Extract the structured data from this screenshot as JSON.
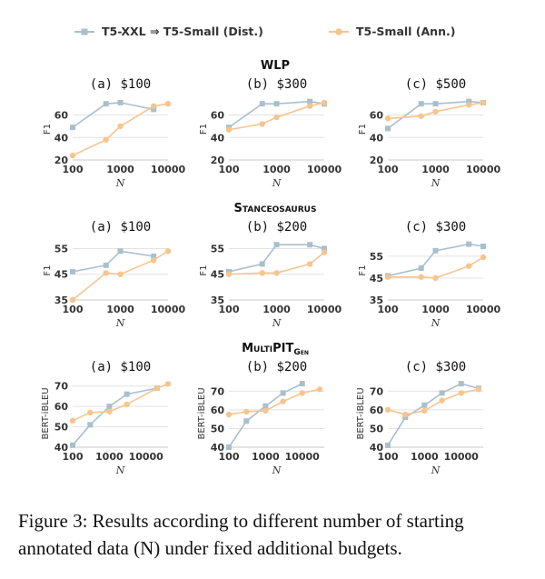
{
  "legend": {
    "distill": {
      "label": "T5-XXL ⇒ T5-Small (Dist.)",
      "color": "#a9bfcc",
      "marker": "square"
    },
    "annot": {
      "label": "T5-Small (Ann.)",
      "color": "#f6c58e",
      "marker": "circle"
    }
  },
  "caption": "Figure 3: Results according to different number of starting annotated data (N) under fixed additional budgets.",
  "chart_data": [
    {
      "type": "line",
      "group": "WLP",
      "group_title": "WLP",
      "title": "(a) $100",
      "xlabel": "N",
      "ylabel": "F1",
      "xscale": "log",
      "xlim": [
        100,
        10000
      ],
      "ylim": [
        20,
        75
      ],
      "xticks": [
        100,
        1000,
        10000
      ],
      "xtick_labels": [
        "100",
        "1000",
        "10000"
      ],
      "yticks": [
        20,
        40,
        60
      ],
      "ytick_labels": [
        "20",
        "40",
        "60"
      ],
      "series": [
        {
          "name": "T5-XXL ⇒ T5-Small (Dist.)",
          "x": [
            100,
            500,
            1000,
            5000
          ],
          "y": [
            49,
            70,
            71,
            65
          ]
        },
        {
          "name": "T5-Small (Ann.)",
          "x": [
            100,
            500,
            1000,
            5000,
            10000
          ],
          "y": [
            24,
            38,
            50,
            68,
            70
          ]
        }
      ]
    },
    {
      "type": "line",
      "group": "WLP",
      "title": "(b) $300",
      "xlabel": "N",
      "ylabel": "F1",
      "xscale": "log",
      "xlim": [
        100,
        10000
      ],
      "ylim": [
        20,
        75
      ],
      "xticks": [
        100,
        1000,
        10000
      ],
      "xtick_labels": [
        "100",
        "1000",
        "10000"
      ],
      "yticks": [
        20,
        40,
        60
      ],
      "ytick_labels": [
        "20",
        "40",
        "60"
      ],
      "series": [
        {
          "name": "T5-XXL ⇒ T5-Small (Dist.)",
          "x": [
            100,
            500,
            1000,
            5000,
            10000
          ],
          "y": [
            49,
            70,
            70,
            72,
            70
          ]
        },
        {
          "name": "T5-Small (Ann.)",
          "x": [
            100,
            500,
            1000,
            5000,
            10000
          ],
          "y": [
            47,
            52,
            58,
            68,
            71
          ]
        }
      ]
    },
    {
      "type": "line",
      "group": "WLP",
      "title": "(c) $500",
      "xlabel": "N",
      "ylabel": "F1",
      "xscale": "log",
      "xlim": [
        100,
        10000
      ],
      "ylim": [
        20,
        75
      ],
      "xticks": [
        100,
        1000,
        10000
      ],
      "xtick_labels": [
        "100",
        "1000",
        "10000"
      ],
      "yticks": [
        20,
        40,
        60
      ],
      "ytick_labels": [
        "20",
        "40",
        "60"
      ],
      "series": [
        {
          "name": "T5-XXL ⇒ T5-Small (Dist.)",
          "x": [
            100,
            500,
            1000,
            5000,
            10000
          ],
          "y": [
            48,
            70,
            70,
            72,
            71
          ]
        },
        {
          "name": "T5-Small (Ann.)",
          "x": [
            100,
            500,
            1000,
            5000,
            10000
          ],
          "y": [
            57,
            59,
            63,
            69,
            71
          ]
        }
      ]
    },
    {
      "type": "line",
      "group": "STANCEOSAURUS",
      "group_title": "Stanceosaurus",
      "title": "(a) $100",
      "xlabel": "N",
      "ylabel": "F1",
      "xscale": "log",
      "xlim": [
        100,
        10000
      ],
      "ylim": [
        35,
        58
      ],
      "xticks": [
        100,
        1000,
        10000
      ],
      "xtick_labels": [
        "100",
        "1000",
        "10000"
      ],
      "yticks": [
        35,
        45,
        55
      ],
      "ytick_labels": [
        "35",
        "45",
        "55"
      ],
      "series": [
        {
          "name": "T5-XXL ⇒ T5-Small (Dist.)",
          "x": [
            100,
            500,
            1000,
            5000
          ],
          "y": [
            46,
            48.5,
            54,
            52
          ]
        },
        {
          "name": "T5-Small (Ann.)",
          "x": [
            100,
            500,
            1000,
            5000,
            10000
          ],
          "y": [
            35,
            45.5,
            45,
            50.5,
            54
          ]
        }
      ]
    },
    {
      "type": "line",
      "group": "STANCEOSAURUS",
      "title": "(b) $200",
      "xlabel": "N",
      "ylabel": "F1",
      "xscale": "log",
      "xlim": [
        100,
        10000
      ],
      "ylim": [
        35,
        58
      ],
      "xticks": [
        100,
        1000,
        10000
      ],
      "xtick_labels": [
        "100",
        "1000",
        "10000"
      ],
      "yticks": [
        35,
        45,
        55
      ],
      "ytick_labels": [
        "35",
        "45",
        "55"
      ],
      "series": [
        {
          "name": "T5-XXL ⇒ T5-Small (Dist.)",
          "x": [
            100,
            500,
            1000,
            5000,
            10000
          ],
          "y": [
            46,
            49,
            56.5,
            56.5,
            55
          ]
        },
        {
          "name": "T5-Small (Ann.)",
          "x": [
            100,
            500,
            1000,
            5000,
            10000
          ],
          "y": [
            45,
            45.5,
            45.5,
            49,
            53.5
          ]
        }
      ]
    },
    {
      "type": "line",
      "group": "STANCEOSAURUS",
      "title": "(c) $300",
      "xlabel": "N",
      "ylabel": "F1",
      "xscale": "log",
      "xlim": [
        100,
        10000
      ],
      "ylim": [
        35,
        62
      ],
      "xticks": [
        100,
        1000,
        10000
      ],
      "xtick_labels": [
        "100",
        "1000",
        "10000"
      ],
      "yticks": [
        35,
        45,
        55
      ],
      "ytick_labels": [
        "35",
        "45",
        "55"
      ],
      "series": [
        {
          "name": "T5-XXL ⇒ T5-Small (Dist.)",
          "x": [
            100,
            500,
            1000,
            5000,
            10000
          ],
          "y": [
            46,
            49.5,
            57.5,
            60.5,
            59.5
          ]
        },
        {
          "name": "T5-Small (Ann.)",
          "x": [
            100,
            500,
            1000,
            5000,
            10000
          ],
          "y": [
            45.5,
            45.5,
            45,
            50.5,
            54.5
          ]
        }
      ]
    },
    {
      "type": "line",
      "group": "MULTIPIT_GEN",
      "group_title": "MultiPIT",
      "group_title_sub": "Gen",
      "title": "(a) $100",
      "xlabel": "N",
      "ylabel": "BERT-iBLEU",
      "xscale": "log",
      "xlim": [
        100,
        40000
      ],
      "ylim": [
        40,
        73
      ],
      "xticks": [
        100,
        1000,
        10000
      ],
      "xtick_labels": [
        "100",
        "1000",
        "10000"
      ],
      "yticks": [
        40,
        50,
        60,
        70
      ],
      "ytick_labels": [
        "40",
        "50",
        "60",
        "70"
      ],
      "series": [
        {
          "name": "T5-XXL ⇒ T5-Small (Dist.)",
          "x": [
            100,
            300,
            1000,
            3000,
            20000
          ],
          "y": [
            41,
            51,
            60,
            66,
            69
          ]
        },
        {
          "name": "T5-Small (Ann.)",
          "x": [
            100,
            300,
            1000,
            3000,
            20000,
            40000
          ],
          "y": [
            53,
            57,
            57.5,
            61,
            69,
            71
          ]
        }
      ]
    },
    {
      "type": "line",
      "group": "MULTIPIT_GEN",
      "title": "(b) $200",
      "xlabel": "N",
      "ylabel": "BERT-iBLEU",
      "xscale": "log",
      "xlim": [
        100,
        40000
      ],
      "ylim": [
        40,
        76
      ],
      "xticks": [
        100,
        1000,
        10000
      ],
      "xtick_labels": [
        "100",
        "1000",
        "10000"
      ],
      "yticks": [
        40,
        50,
        60,
        70
      ],
      "ytick_labels": [
        "40",
        "50",
        "60",
        "70"
      ],
      "series": [
        {
          "name": "T5-XXL ⇒ T5-Small (Dist.)",
          "x": [
            100,
            300,
            1000,
            3000,
            10000
          ],
          "y": [
            40,
            54,
            62,
            69,
            74
          ]
        },
        {
          "name": "T5-Small (Ann.)",
          "x": [
            100,
            300,
            1000,
            3000,
            10000,
            30000
          ],
          "y": [
            57.5,
            59,
            59.5,
            64.5,
            69,
            71
          ]
        }
      ]
    },
    {
      "type": "line",
      "group": "MULTIPIT_GEN",
      "title": "(c) $300",
      "xlabel": "N",
      "ylabel": "BERT-iBLEU",
      "xscale": "log",
      "xlim": [
        100,
        40000
      ],
      "ylim": [
        40,
        76
      ],
      "xticks": [
        100,
        1000,
        10000
      ],
      "xtick_labels": [
        "100",
        "1000",
        "10000"
      ],
      "yticks": [
        40,
        50,
        60,
        70
      ],
      "ytick_labels": [
        "40",
        "50",
        "60",
        "70"
      ],
      "series": [
        {
          "name": "T5-XXL ⇒ T5-Small (Dist.)",
          "x": [
            100,
            300,
            1000,
            3000,
            10000,
            30000
          ],
          "y": [
            41,
            56,
            62.5,
            69,
            74,
            71.5
          ]
        },
        {
          "name": "T5-Small (Ann.)",
          "x": [
            100,
            300,
            1000,
            3000,
            10000,
            30000
          ],
          "y": [
            60,
            57.5,
            59.5,
            65,
            69,
            71
          ]
        }
      ]
    }
  ]
}
